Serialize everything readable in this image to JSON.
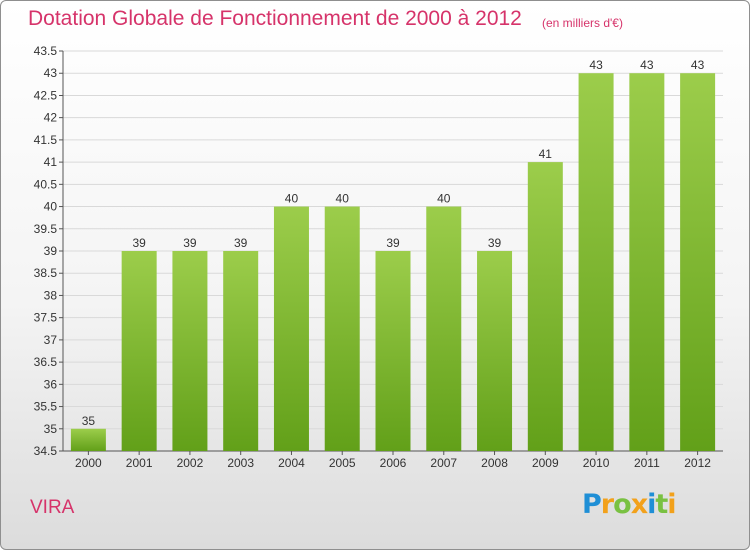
{
  "header": {
    "title": "Dotation Globale de Fonctionnement de 2000 à 2012",
    "subtitle": "(en milliers d'€)"
  },
  "footer": {
    "commune": "VIRA",
    "logo_letters": [
      {
        "char": "P",
        "color": "#1f8fd6"
      },
      {
        "char": "r",
        "color": "#f2a11b"
      },
      {
        "char": "o",
        "color": "#79c142"
      },
      {
        "char": "x",
        "color": "#f2a11b"
      },
      {
        "char": "i",
        "color": "#1f8fd6"
      },
      {
        "char": "t",
        "color": "#79c142"
      },
      {
        "char": "i",
        "color": "#f2a11b"
      }
    ]
  },
  "colors": {
    "accent": "#d6336a",
    "bar_light": "#9ccd4b",
    "bar_dark": "#62a019",
    "grid": "#d9d9d9"
  },
  "chart_data": {
    "type": "bar",
    "title": "Dotation Globale de Fonctionnement de 2000 à 2012",
    "subtitle": "(en milliers d'€)",
    "categories": [
      "2000",
      "2001",
      "2002",
      "2003",
      "2004",
      "2005",
      "2006",
      "2007",
      "2008",
      "2009",
      "2010",
      "2011",
      "2012"
    ],
    "values": [
      35,
      39,
      39,
      39,
      40,
      40,
      39,
      40,
      39,
      41,
      43,
      43,
      43
    ],
    "ylim": [
      34.5,
      43.5
    ],
    "yticks": [
      34.5,
      35,
      35.5,
      36,
      36.5,
      37,
      37.5,
      38,
      38.5,
      39,
      39.5,
      40,
      40.5,
      41,
      41.5,
      42,
      42.5,
      43,
      43.5
    ],
    "grid": true,
    "xlabel": "",
    "ylabel": ""
  }
}
